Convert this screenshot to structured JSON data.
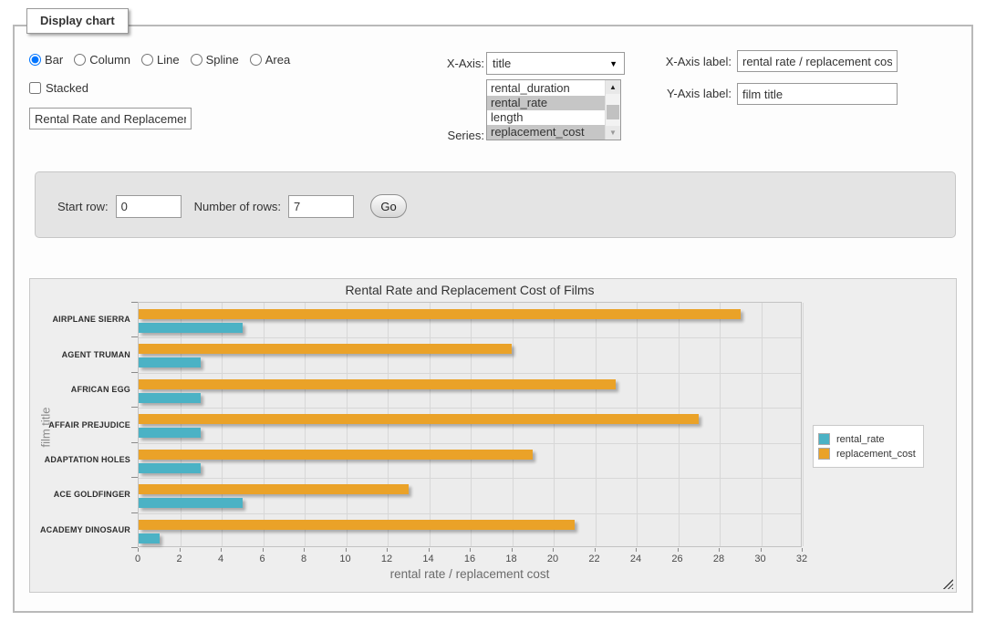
{
  "window": {
    "legend": "Display chart"
  },
  "controls": {
    "chart_types": [
      {
        "label": "Bar",
        "selected": true
      },
      {
        "label": "Column",
        "selected": false
      },
      {
        "label": "Line",
        "selected": false
      },
      {
        "label": "Spline",
        "selected": false
      },
      {
        "label": "Area",
        "selected": false
      }
    ],
    "stacked": {
      "label": "Stacked",
      "checked": false
    },
    "chart_title_input": {
      "value": "Rental Rate and Replacement Cost of Films"
    },
    "xaxis_select": {
      "label": "X-Axis:",
      "value": "title",
      "arrow_icon": "▼"
    },
    "series_select": {
      "label": "Series:",
      "options": [
        {
          "label": "rental_duration",
          "selected": false
        },
        {
          "label": "rental_rate",
          "selected": true
        },
        {
          "label": "length",
          "selected": false
        },
        {
          "label": "replacement_cost",
          "selected": true
        }
      ],
      "scroll_up_icon": "▲",
      "scroll_down_icon": "▼"
    },
    "xaxis_label_input": {
      "label": "X-Axis label:",
      "value": "rental rate / replacement cost"
    },
    "yaxis_label_input": {
      "label": "Y-Axis label:",
      "value": "film title"
    }
  },
  "row_form": {
    "start_row_label": "Start row:",
    "start_row_value": "0",
    "rows_label": "Number of rows:",
    "rows_value": "7",
    "go_label": "Go"
  },
  "chart_data": {
    "type": "bar",
    "orientation": "horizontal",
    "title": "Rental Rate and Replacement Cost of Films",
    "categories": [
      "AIRPLANE SIERRA",
      "AGENT TRUMAN",
      "AFRICAN EGG",
      "AFFAIR PREJUDICE",
      "ADAPTATION HOLES",
      "ACE GOLDFINGER",
      "ACADEMY DINOSAUR"
    ],
    "series": [
      {
        "name": "rental_rate",
        "color": "#4bb2c5",
        "values": [
          4.99,
          2.99,
          2.99,
          2.99,
          2.99,
          4.99,
          0.99
        ]
      },
      {
        "name": "replacement_cost",
        "color": "#eaa228",
        "values": [
          28.99,
          17.99,
          22.99,
          26.99,
          18.99,
          12.99,
          20.99
        ]
      }
    ],
    "bar_order_top_to_bottom": [
      "replacement_cost",
      "rental_rate"
    ],
    "xlabel": "rental rate / replacement cost",
    "ylabel": "film title",
    "xlim": [
      0,
      32
    ],
    "xtick_step": 2,
    "grid": true,
    "legend_position": "right"
  }
}
